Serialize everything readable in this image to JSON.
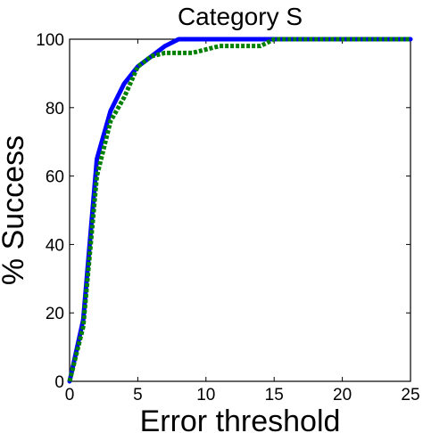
{
  "chart_data": {
    "type": "line",
    "title": "Category S",
    "xlabel": "Error threshold",
    "ylabel": "% Success",
    "xlim": [
      0,
      25
    ],
    "ylim": [
      0,
      100
    ],
    "xticks": [
      0,
      5,
      10,
      15,
      20,
      25
    ],
    "yticks": [
      0,
      20,
      40,
      60,
      80,
      100
    ],
    "grid": false,
    "legend": "none",
    "series": [
      {
        "color": "#0000ff",
        "style": "solid",
        "x": [
          0,
          1,
          2,
          3,
          4,
          5,
          6,
          7,
          8,
          9,
          10,
          11,
          12,
          13,
          14,
          15,
          16,
          17,
          18,
          19,
          20,
          21,
          22,
          23,
          24,
          25
        ],
        "y": [
          0,
          18,
          65,
          79,
          87,
          92,
          95,
          98,
          100,
          100,
          100,
          100,
          100,
          100,
          100,
          100,
          100,
          100,
          100,
          100,
          100,
          100,
          100,
          100,
          100,
          100
        ]
      },
      {
        "color": "#008000",
        "style": "dotted",
        "x": [
          0,
          1,
          2,
          3,
          4,
          5,
          6,
          7,
          8,
          9,
          10,
          11,
          12,
          13,
          14,
          15,
          16,
          17,
          18,
          19,
          20,
          21,
          22,
          23,
          24,
          25
        ],
        "y": [
          0,
          16,
          60,
          76,
          83,
          92,
          95,
          96,
          96,
          96,
          97,
          98,
          98,
          98,
          98,
          100,
          100,
          100,
          100,
          100,
          100,
          100,
          100,
          100,
          100,
          100
        ]
      }
    ]
  }
}
